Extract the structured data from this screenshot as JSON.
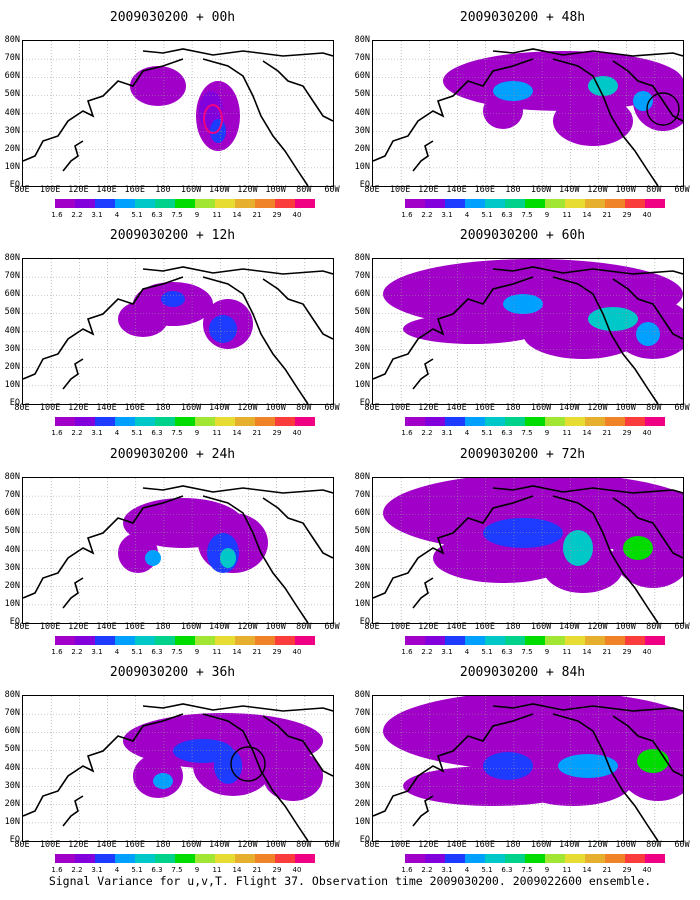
{
  "caption": "Signal Variance for u,v,T. Flight 37. Observation time 2009030200. 2009022600 ensemble.",
  "lat_labels": [
    "80N",
    "70N",
    "60N",
    "50N",
    "40N",
    "30N",
    "20N",
    "10N",
    "EQ"
  ],
  "lon_labels": [
    "80E",
    "100E",
    "120E",
    "140E",
    "160E",
    "180",
    "160W",
    "140W",
    "120W",
    "100W",
    "80W",
    "60W"
  ],
  "colorbar": {
    "labels": [
      "1.6",
      "2.2",
      "3.1",
      "4",
      "5.1",
      "6.3",
      "7.5",
      "9",
      "11",
      "14",
      "21",
      "29",
      "40"
    ],
    "colors": [
      "#a000c8",
      "#8200dc",
      "#1e3cff",
      "#00a0ff",
      "#00c8c8",
      "#00d28c",
      "#00dc00",
      "#a0e632",
      "#e6dc32",
      "#e6af2d",
      "#f08228",
      "#fa3c3c",
      "#f00082"
    ]
  },
  "panels": [
    {
      "title": "2009030200 + 00h"
    },
    {
      "title": "2009030200 + 12h"
    },
    {
      "title": "2009030200 + 24h"
    },
    {
      "title": "2009030200 + 36h"
    },
    {
      "title": "2009030200 + 48h"
    },
    {
      "title": "2009030200 + 60h"
    },
    {
      "title": "2009030200 + 72h"
    },
    {
      "title": "2009030200 + 84h"
    }
  ],
  "chart_data": {
    "type": "heatmap",
    "x_range": [
      "80E",
      "60W"
    ],
    "y_range": [
      "EQ",
      "80N"
    ],
    "grid": true,
    "legend": "bottom colorbar",
    "levels": [
      1.6,
      2.2,
      3.1,
      4,
      5.1,
      6.3,
      7.5,
      9,
      11,
      14,
      21,
      29,
      40
    ]
  }
}
